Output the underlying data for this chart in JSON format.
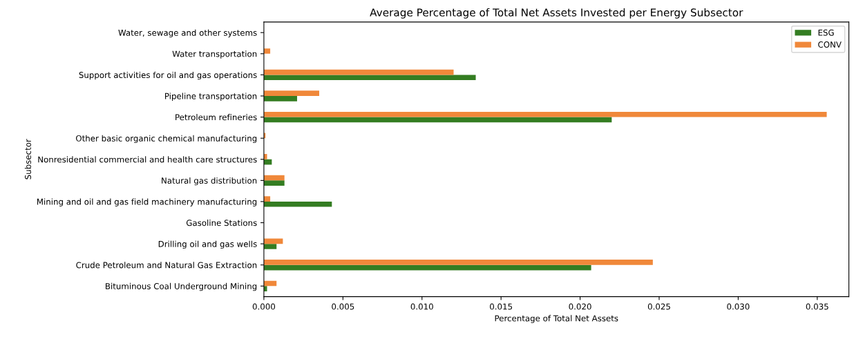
{
  "chart_data": {
    "type": "bar",
    "orientation": "horizontal",
    "title": "Average Percentage of Total Net Assets Invested per Energy Subsector",
    "xlabel": "Percentage of Total Net Assets",
    "ylabel": "Subsector",
    "categories": [
      "Water, sewage and other systems",
      "Water transportation",
      "Support activities for oil and gas operations",
      "Pipeline transportation",
      "Petroleum refineries",
      "Other basic organic chemical manufacturing",
      "Nonresidential commercial and health care structures",
      "Natural gas distribution",
      "Mining and oil and gas field machinery manufacturing",
      "Gasoline Stations",
      "Drilling oil and gas wells",
      "Crude Petroleum and Natural Gas Extraction",
      "Bituminous Coal Underground Mining"
    ],
    "series": [
      {
        "name": "ESG",
        "color": "#347d22",
        "values": [
          0,
          0,
          0.0134,
          0.0021,
          0.022,
          0,
          0.0005,
          0.0013,
          0.0043,
          0,
          0.0008,
          0.0207,
          0.0002
        ]
      },
      {
        "name": "CONV",
        "color": "#f0883a",
        "values": [
          0,
          0.0004,
          0.012,
          0.0035,
          0.0356,
          0.0001,
          0.0002,
          0.0013,
          0.0004,
          0,
          0.0012,
          0.0246,
          0.0008
        ]
      }
    ],
    "xlim": [
      0,
      0.037
    ],
    "xticks": [
      {
        "value": 0,
        "label": "0.000"
      },
      {
        "value": 0.005,
        "label": "0.005"
      },
      {
        "value": 0.01,
        "label": "0.010"
      },
      {
        "value": 0.015,
        "label": "0.015"
      },
      {
        "value": 0.02,
        "label": "0.020"
      },
      {
        "value": 0.025,
        "label": "0.025"
      },
      {
        "value": 0.03,
        "label": "0.030"
      },
      {
        "value": 0.035,
        "label": "0.035"
      }
    ],
    "legend": "top right",
    "grid": false
  }
}
